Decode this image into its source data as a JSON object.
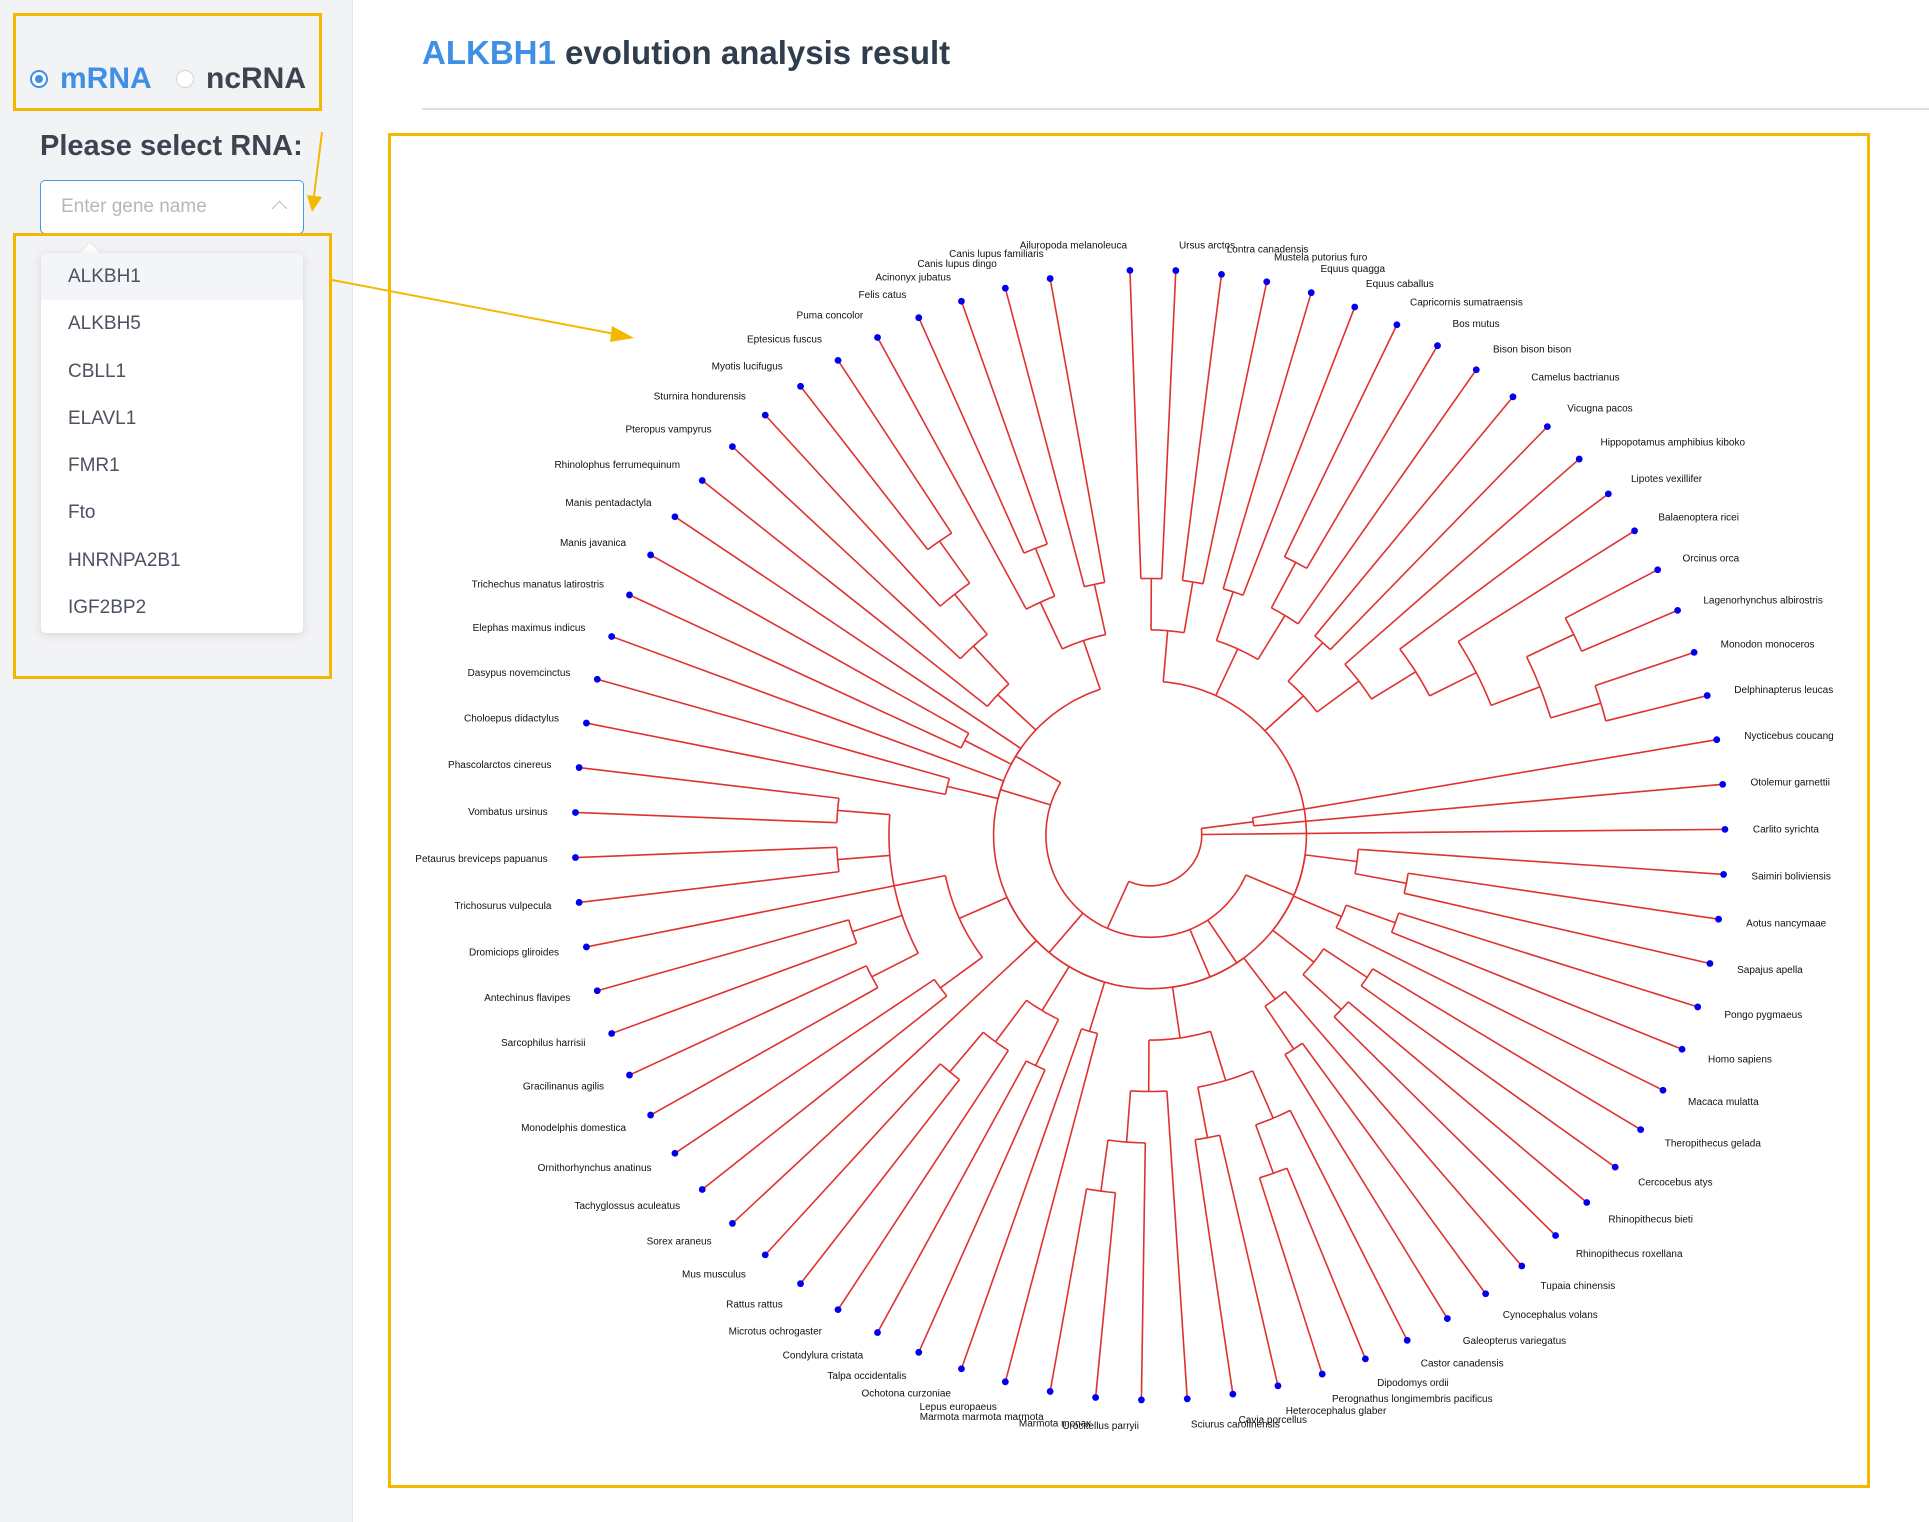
{
  "sidebar": {
    "rna_types": [
      {
        "label": "mRNA",
        "selected": true
      },
      {
        "label": "ncRNA",
        "selected": false
      }
    ],
    "select_label": "Please select RNA:",
    "gene_input": {
      "placeholder": "Enter gene name",
      "value": ""
    },
    "gene_options": [
      "ALKBH1",
      "ALKBH5",
      "CBLL1",
      "ELAVL1",
      "FMR1",
      "Fto",
      "HNRNPA2B1",
      "IGF2BP2"
    ],
    "highlighted_option": "ALKBH1"
  },
  "header": {
    "gene": "ALKBH1",
    "title_suffix": " evolution analysis result"
  },
  "colors": {
    "accent": "#3f8fe6",
    "highlight_box": "#f5b800",
    "branch": "#e03131",
    "tip": "#0000ee"
  },
  "tree": {
    "type": "circular-cladogram",
    "tips": [
      "Ailuropoda melanoleuca",
      "Ursus arctos",
      "Lontra canadensis",
      "Mustela putorius furo",
      "Equus quagga",
      "Equus caballus",
      "Capricornis sumatraensis",
      "Bos mutus",
      "Bison bison bison",
      "Camelus bactrianus",
      "Vicugna pacos",
      "Hippopotamus amphibius kiboko",
      "Lipotes vexillifer",
      "Balaenoptera ricei",
      "Orcinus orca",
      "Lagenorhynchus albirostris",
      "Monodon monoceros",
      "Delphinapterus leucas",
      "Nycticebus coucang",
      "Otolemur garnettii",
      "Carlito syrichta",
      "Saimiri boliviensis",
      "Aotus nancymaae",
      "Sapajus apella",
      "Pongo pygmaeus",
      "Homo sapiens",
      "Macaca mulatta",
      "Theropithecus gelada",
      "Cercocebus atys",
      "Rhinopithecus bieti",
      "Rhinopithecus roxellana",
      "Tupaia chinensis",
      "Cynocephalus volans",
      "Galeopterus variegatus",
      "Castor canadensis",
      "Dipodomys ordii",
      "Perognathus longimembris pacificus",
      "Heterocephalus glaber",
      "Cavia porcellus",
      "Sciurus carolinensis",
      "Urocitellus parryii",
      "Marmota monax",
      "Marmota marmota marmota",
      "Lepus europaeus",
      "Ochotona curzoniae",
      "Talpa occidentalis",
      "Condylura cristata",
      "Microtus ochrogaster",
      "Rattus rattus",
      "Mus musculus",
      "Sorex araneus",
      "Tachyglossus aculeatus",
      "Ornithorhynchus anatinus",
      "Monodelphis domestica",
      "Gracilinanus agilis",
      "Sarcophilus harrisii",
      "Antechinus flavipes",
      "Dromiciops gliroides",
      "Trichosurus vulpecula",
      "Petaurus breviceps papuanus",
      "Vombatus ursinus",
      "Phascolarctos cinereus",
      "Choloepus didactylus",
      "Dasypus novemcinctus",
      "Elephas maximus indicus",
      "Trichechus manatus latirostris",
      "Manis javanica",
      "Manis pentadactyla",
      "Rhinolophus ferrumequinum",
      "Pteropus vampyrus",
      "Sturnira hondurensis",
      "Myotis lucifugus",
      "Eptesicus fuscus",
      "Puma concolor",
      "Felis catus",
      "Acinonyx jubatus",
      "Canis lupus dingo",
      "Canis lupus familiaris"
    ]
  }
}
